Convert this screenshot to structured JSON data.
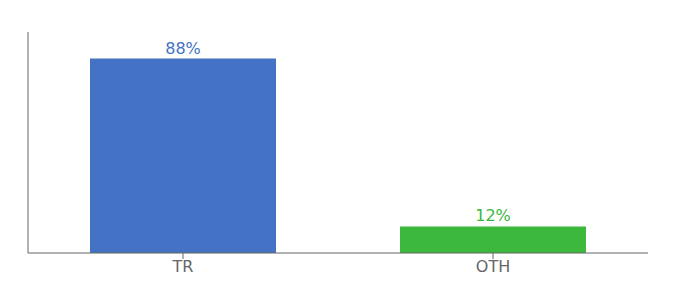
{
  "chart_data": {
    "type": "bar",
    "categories": [
      "TR",
      "OTH"
    ],
    "values": [
      88,
      12
    ],
    "value_labels": [
      "88%",
      "12%"
    ],
    "colors": [
      "#4472c4",
      "#3cb83c"
    ],
    "ylim": [
      0,
      100
    ],
    "tick_labels": "x",
    "grid": false,
    "data_labels": true
  }
}
